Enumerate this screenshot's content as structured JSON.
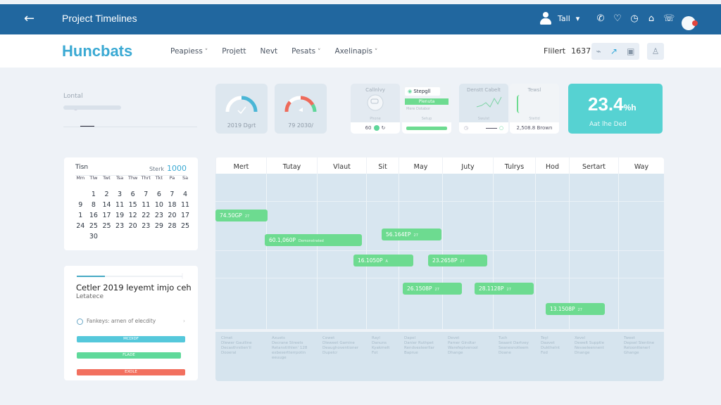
{
  "topbar": {
    "back_icon": "arrow-left-icon",
    "title": "Project Timelines",
    "user_label": "Tall",
    "user_caret": "▾",
    "icons": [
      "phone-icon",
      "location-pin-icon",
      "clock-icon",
      "briefcase-icon",
      "chat-icon"
    ],
    "icon_glyphs": [
      "✆",
      "♡",
      "◷",
      "⌂",
      "☏"
    ]
  },
  "navbar": {
    "brand": "Huncbats",
    "items": [
      {
        "label": "Peapiess",
        "dropdown": true
      },
      {
        "label": "Projett",
        "dropdown": false
      },
      {
        "label": "Nevt",
        "dropdown": false
      },
      {
        "label": "Pesats",
        "dropdown": true
      },
      {
        "label": "Axelinapis",
        "dropdown": true
      }
    ],
    "filter_label": "Flilert",
    "filter_value": "1637",
    "toolbar_icons": [
      "paperclip-icon",
      "trend-chart-icon",
      "layout-icon"
    ],
    "toolbar_glyphs": [
      "⌁",
      "↗",
      "▣"
    ],
    "profile_icon": "user-profile-icon",
    "profile_glyph": "♙"
  },
  "location": {
    "label": "Lontal",
    "slider_value": "1"
  },
  "gauges": [
    {
      "caption": "2019 Dgrt",
      "accent": "#4ab6d6"
    },
    {
      "caption": "79 2030/",
      "accent": "#ee6a5a"
    }
  ],
  "mini_cards": [
    {
      "title": "Callnlvy",
      "sub": "Phone",
      "foot": "60"
    },
    {
      "title": "Stepgll",
      "button": "Plenuta",
      "line": "Mere Dotabor",
      "sub": "Setup"
    },
    {
      "title": "Denstt Cabelt",
      "sub": "Swulst"
    },
    {
      "title": "Tewsl",
      "sub": "Stettd",
      "foot": "2,508.8 Brown"
    }
  ],
  "stat": {
    "value": "23.4",
    "unit": "%h",
    "label": "Aat lhe Ded",
    "color": "#56d2d2"
  },
  "calendar": {
    "title": "Tisn",
    "year_label": "Sterk",
    "year": "1000",
    "day_headers": [
      "Mm",
      "Tlw",
      "Twt",
      "Tsa",
      "Thw",
      "Thrt",
      "Tkt",
      "Pa",
      "Sa"
    ],
    "weeks": [
      [
        "",
        "1",
        "2",
        "3",
        "6",
        "7",
        "6",
        "7",
        "4"
      ],
      [
        "9",
        "8",
        "14",
        "11",
        "15",
        "11",
        "10",
        "18",
        "11"
      ],
      [
        "1",
        "16",
        "17",
        "19",
        "12",
        "22",
        "23",
        "20",
        "17"
      ],
      [
        "24",
        "25",
        "25",
        "23",
        "20",
        "23",
        "29",
        "28",
        "25"
      ],
      [
        "",
        "30",
        "",
        "",
        "",
        "",
        "",
        "",
        ""
      ]
    ]
  },
  "summary": {
    "heading": "Cetler 2019 leyemt imjo ceh",
    "subheading": "Letatece",
    "row_label": "Fankeys: arnen of elecdity",
    "progress_bars": [
      {
        "label": "MCDIDF",
        "color": "#55c8db"
      },
      {
        "label": "FLADE",
        "color": "#5fd99a"
      },
      {
        "label": "EXOLE",
        "color": "#f2705f"
      }
    ]
  },
  "timeline": {
    "columns": [
      "Mert",
      "Tutay",
      "Vlaut",
      "Sit",
      "May",
      "Juty",
      "Tulrys",
      "Hod",
      "Sertart",
      "Way"
    ],
    "bars": [
      {
        "label": "74.50GP",
        "sup": "27"
      },
      {
        "label": "60.1,060P",
        "sup": "Demonstrated"
      },
      {
        "label": "56.164EP",
        "sup": "27"
      },
      {
        "label": "16.1050P",
        "sup": "A"
      },
      {
        "label": "23.2658P",
        "sup": "27"
      },
      {
        "label": "26.1508P",
        "sup": "27"
      },
      {
        "label": "28.1128P",
        "sup": "27"
      },
      {
        "label": "13.1508P",
        "sup": "27"
      }
    ],
    "footer_cells": [
      [
        "Clmet",
        "Dlewer Gaulline",
        "Decasthrstien'il",
        "Dooeral"
      ],
      [
        "Axuets",
        "Decrane Streets",
        "Retanstithlen' 128",
        "exbesertterrpotin",
        "eeuuge"
      ],
      [
        "Cewet",
        "Dleweet Gamine",
        "Deaughoventioner",
        "Dupelcr"
      ],
      [
        "Rayl",
        "Danuns",
        "Kyakmelt",
        "Fot"
      ],
      [
        "Dapel",
        "Danier Ruthpet",
        "Rendvexleerllar",
        "Baprue"
      ],
      [
        "Devet",
        "Pamer Gindtar",
        "Warefeplvenool",
        "Dhange"
      ],
      [
        "Tuch",
        "Seaant Dartvey",
        "Seanesnotleem",
        "Doane"
      ],
      [
        "Teyl",
        "Daavet",
        "Dukthelnt",
        "Fod"
      ],
      [
        "Xevel",
        "Dewelt Supptle",
        "Nevaeleennent",
        "Dnange"
      ],
      [
        "Tweet",
        "Depsel Slentine",
        "Reloonttenerl",
        "Ghange"
      ]
    ]
  }
}
